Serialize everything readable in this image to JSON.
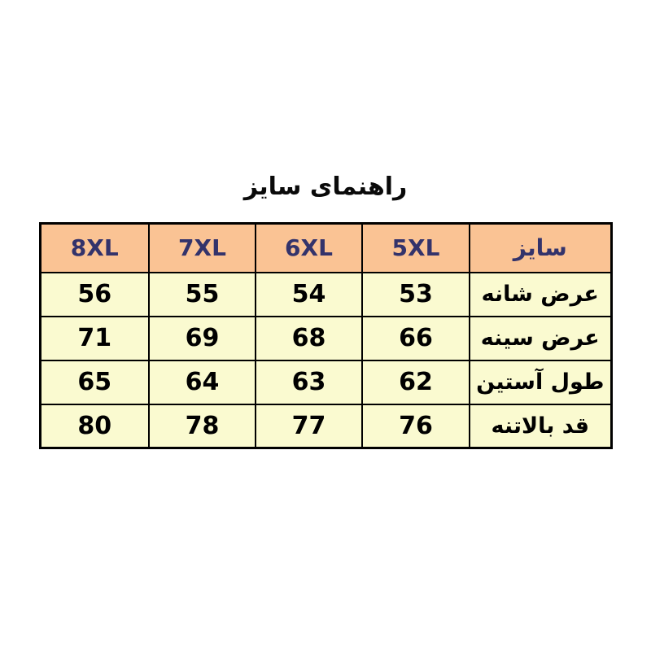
{
  "title": "راهنمای سایز",
  "chart_data": {
    "type": "table",
    "title": "راهنمای سایز",
    "direction": "rtl",
    "header": [
      "سایز",
      "5XL",
      "6XL",
      "7XL",
      "8XL"
    ],
    "value_columns_order": [
      "5XL",
      "6XL",
      "7XL",
      "8XL"
    ],
    "rows": [
      {
        "label": "عرض شانه",
        "values": [
          "53",
          "54",
          "55",
          "56"
        ]
      },
      {
        "label": "عرض سینه",
        "values": [
          "66",
          "68",
          "69",
          "71"
        ]
      },
      {
        "label": "طول آستین",
        "values": [
          "62",
          "63",
          "64",
          "65"
        ]
      },
      {
        "label": "قد بالاتنه",
        "values": [
          "76",
          "77",
          "78",
          "80"
        ]
      }
    ]
  },
  "colors": {
    "header_bg": "#FAC394",
    "header_text": "#33336B",
    "row_bg": "#FAFAD0",
    "row_text": "#000000",
    "border": "#000000",
    "title_text": "#0a0a0a"
  }
}
